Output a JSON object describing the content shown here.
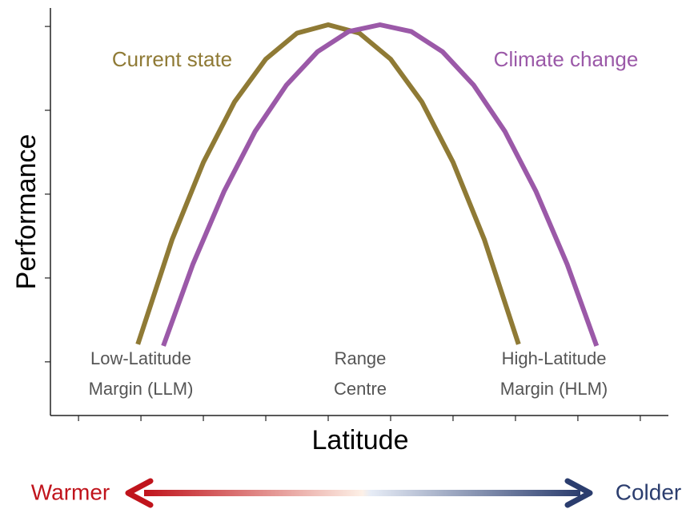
{
  "chart_data": {
    "type": "line",
    "x_label": "Latitude",
    "y_label": "Performance",
    "xlim": [
      -0.45,
      9.45
    ],
    "ylim": [
      -0.64,
      4.22
    ],
    "xticks": [
      0,
      1,
      2,
      3,
      4,
      5,
      6,
      7,
      8,
      9
    ],
    "yticks": [
      0,
      1,
      2,
      3,
      4
    ],
    "series": [
      {
        "name": "Current state",
        "color": "#8f7a35",
        "x": [
          0.95,
          1.5,
          2,
          2.5,
          3,
          3.5,
          4,
          4.5,
          5,
          5.5,
          6,
          6.5,
          7.05
        ],
        "values": [
          0.21,
          1.46,
          2.38,
          3.1,
          3.61,
          3.92,
          4.02,
          3.92,
          3.61,
          3.1,
          2.38,
          1.46,
          0.21
        ]
      },
      {
        "name": "Climate change",
        "color": "#9b59a8",
        "x": [
          1.36,
          1.83,
          2.33,
          2.83,
          3.33,
          3.83,
          4.33,
          4.83,
          5.33,
          5.83,
          6.33,
          6.83,
          7.33,
          7.83,
          8.3
        ],
        "values": [
          0.19,
          1.16,
          2.03,
          2.75,
          3.3,
          3.7,
          3.94,
          4.02,
          3.94,
          3.7,
          3.3,
          2.75,
          2.03,
          1.16,
          0.19
        ]
      }
    ],
    "margin_labels": [
      [
        "Low-Latitude",
        "Margin (LLM)"
      ],
      [
        "Range",
        "Centre"
      ],
      [
        "High-Latitude",
        "Margin (HLM)"
      ]
    ],
    "gradient": {
      "left": "Warmer",
      "right": "Colder",
      "left_color": "#c0141c",
      "right_color": "#2b3d6e"
    }
  }
}
